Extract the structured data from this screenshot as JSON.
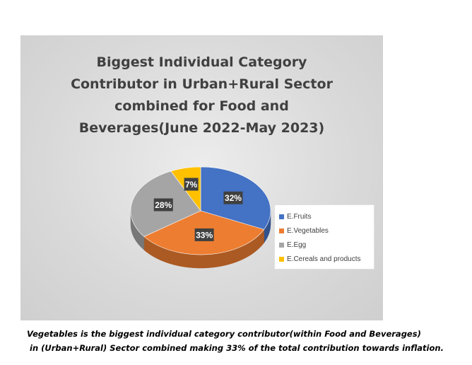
{
  "chart_data": {
    "type": "pie",
    "title": "Biggest Individual Category\nContributor in Urban+Rural Sector\ncombined for Food and\nBeverages(June 2022-May 2023)",
    "categories": [
      "E.Fruits",
      "E.Vegetables",
      "E.Egg",
      "E.Cereals and products"
    ],
    "values": [
      32,
      33,
      28,
      7
    ],
    "data_labels": [
      "32%",
      "33%",
      "28%",
      "7%"
    ],
    "colors": [
      "#4472C4",
      "#ED7D31",
      "#A5A5A5",
      "#FFC000"
    ],
    "legend_position": "right",
    "style": "3d"
  },
  "caption": {
    "line1": "Vegetables is the biggest individual category contributor(within Food and Beverages)",
    "line2": "in (Urban+Rural) Sector combined making 33% of the total contribution towards inflation."
  }
}
